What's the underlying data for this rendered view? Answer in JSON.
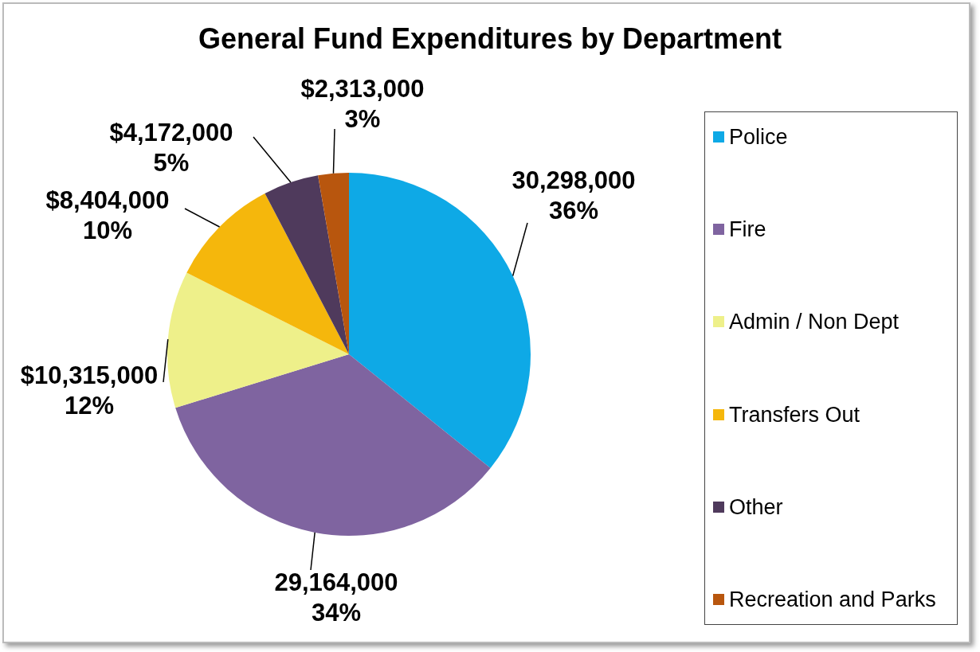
{
  "chart_data": {
    "type": "pie",
    "title": "General Fund Expenditures by Department",
    "categories": [
      "Police",
      "Fire",
      "Admin / Non Dept",
      "Transfers Out",
      "Other",
      "Recreation and Parks"
    ],
    "values": [
      30298000,
      29164000,
      10315000,
      8404000,
      4172000,
      2313000
    ],
    "value_labels": [
      "30,298,000\n36%",
      "29,164,000\n34%",
      "$10,315,000\n12%",
      "$8,404,000\n10%",
      "$4,172,000\n5%",
      "$2,313,000\n3%"
    ],
    "colors": [
      "#0ea9e6",
      "#7f64a0",
      "#eef08a",
      "#f5b70c",
      "#4f3a5c",
      "#b8560e"
    ],
    "legend": "right"
  }
}
